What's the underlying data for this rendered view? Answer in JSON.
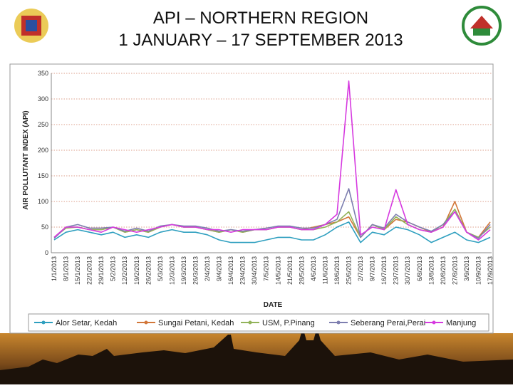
{
  "chart_data": {
    "type": "line",
    "title": "API – NORTHERN REGION",
    "subtitle": "1 JANUARY – 17 SEPTEMBER 2013",
    "x_label": "DATE",
    "y_label": "AIR POLLUTANT INDEX (API)",
    "categories": [
      "1/1/2013",
      "8/1/2013",
      "15/1/2013",
      "22/1/2013",
      "29/1/2013",
      "5/2/2013",
      "12/2/2013",
      "19/2/2013",
      "26/2/2013",
      "5/3/2013",
      "12/3/2013",
      "19/3/2013",
      "26/3/2013",
      "2/4/2013",
      "9/4/2013",
      "16/4/2013",
      "23/4/2013",
      "30/4/2013",
      "7/5/2013",
      "14/5/2013",
      "21/5/2013",
      "28/5/2013",
      "4/6/2013",
      "11/6/2013",
      "18/6/2013",
      "25/6/2013",
      "2/7/2013",
      "9/7/2013",
      "16/7/2013",
      "23/7/2013",
      "30/7/2013",
      "6/8/2013",
      "13/8/2013",
      "20/8/2013",
      "27/8/2013",
      "3/9/2013",
      "10/9/2013",
      "17/9/2013"
    ],
    "series": [
      {
        "name": "Alor Setar, Kedah",
        "color": "#2e9fbf",
        "values": [
          25,
          40,
          45,
          40,
          35,
          40,
          30,
          35,
          30,
          40,
          45,
          40,
          40,
          35,
          25,
          20,
          20,
          20,
          25,
          30,
          30,
          25,
          25,
          35,
          50,
          60,
          20,
          40,
          35,
          50,
          45,
          35,
          20,
          30,
          40,
          25,
          20,
          30
        ]
      },
      {
        "name": "Sungai Petani, Kedah",
        "color": "#d2773a",
        "values": [
          30,
          50,
          50,
          45,
          45,
          50,
          40,
          45,
          40,
          50,
          55,
          50,
          50,
          45,
          40,
          45,
          40,
          45,
          45,
          50,
          50,
          45,
          50,
          55,
          60,
          70,
          30,
          55,
          45,
          65,
          60,
          50,
          40,
          50,
          100,
          40,
          30,
          60
        ]
      },
      {
        "name": "USM, P.Pinang",
        "color": "#92b35a",
        "values": [
          30,
          48,
          50,
          45,
          45,
          50,
          40,
          45,
          40,
          50,
          55,
          50,
          50,
          45,
          40,
          45,
          40,
          45,
          45,
          50,
          50,
          45,
          45,
          50,
          60,
          80,
          30,
          55,
          45,
          70,
          55,
          45,
          40,
          55,
          85,
          40,
          30,
          50
        ]
      },
      {
        "name": "Seberang Perai,Perai",
        "color": "#7d7eaf",
        "values": [
          28,
          50,
          55,
          48,
          48,
          50,
          42,
          48,
          42,
          52,
          55,
          52,
          52,
          48,
          42,
          45,
          42,
          45,
          48,
          52,
          52,
          48,
          48,
          55,
          65,
          125,
          30,
          55,
          48,
          75,
          60,
          50,
          42,
          55,
          80,
          40,
          28,
          55
        ]
      },
      {
        "name": "Manjung",
        "color": "#d63ae0",
        "values": [
          30,
          50,
          50,
          45,
          40,
          50,
          45,
          40,
          45,
          50,
          55,
          50,
          50,
          45,
          45,
          40,
          45,
          45,
          45,
          50,
          50,
          45,
          45,
          55,
          75,
          335,
          35,
          50,
          45,
          123,
          55,
          45,
          40,
          50,
          80,
          40,
          25,
          45
        ]
      }
    ],
    "ylim": [
      0,
      350
    ],
    "yticks": [
      0,
      50,
      100,
      150,
      200,
      250,
      300,
      350
    ],
    "grid": true,
    "legend": "bottom"
  }
}
